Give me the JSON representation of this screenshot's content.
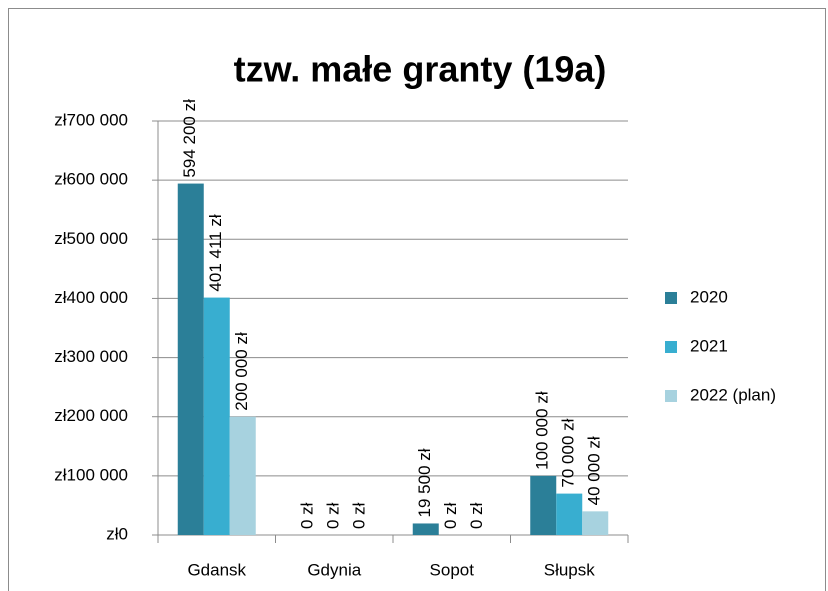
{
  "chart_data": {
    "type": "bar",
    "title": "tzw. małe granty (19a)",
    "categories": [
      "Gdansk",
      "Gdynia",
      "Sopot",
      "Słupsk"
    ],
    "series": [
      {
        "name": "2020",
        "color": "#2b7f98",
        "values": [
          594200,
          0,
          19500,
          100000
        ],
        "value_labels": [
          "594 200 zł",
          "0 zł",
          "19 500 zł",
          "100 000 zł"
        ]
      },
      {
        "name": "2021",
        "color": "#38aed0",
        "values": [
          401411,
          0,
          0,
          70000
        ],
        "value_labels": [
          "401 411 zł",
          "0 zł",
          "0 zł",
          "70 000 zł"
        ]
      },
      {
        "name": "2022 (plan)",
        "color": "#a7d2df",
        "values": [
          200000,
          0,
          0,
          40000
        ],
        "value_labels": [
          "200 000 zł",
          "0 zł",
          "0 zł",
          "40 000 zł"
        ]
      }
    ],
    "ylim": [
      0,
      700000
    ],
    "yticks": [
      {
        "value": 0,
        "label": "zł0"
      },
      {
        "value": 100000,
        "label": "zł100 000"
      },
      {
        "value": 200000,
        "label": "zł200 000"
      },
      {
        "value": 300000,
        "label": "zł300 000"
      },
      {
        "value": 400000,
        "label": "zł400 000"
      },
      {
        "value": 500000,
        "label": "zł500 000"
      },
      {
        "value": 600000,
        "label": "zł600 000"
      },
      {
        "value": 700000,
        "label": "zł700 000"
      }
    ],
    "grid": true,
    "legend": "right"
  }
}
